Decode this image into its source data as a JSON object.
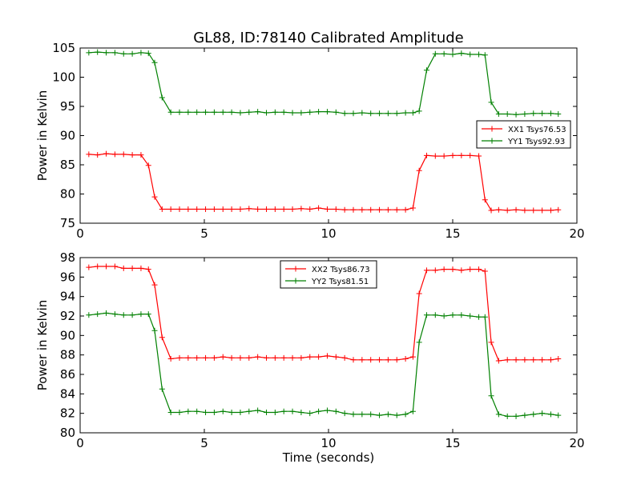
{
  "figure": {
    "title": "GL88, ID:78140 Calibrated Amplitude"
  },
  "chart_data": [
    {
      "type": "line",
      "xlabel": "",
      "ylabel": "Power in Kelvin",
      "xlim": [
        0,
        20
      ],
      "ylim": [
        75,
        105
      ],
      "xticks": [
        "0",
        "5",
        "10",
        "15",
        "20"
      ],
      "yticks": [
        "75",
        "80",
        "85",
        "90",
        "95",
        "100",
        "105"
      ],
      "legend_position": "center-right",
      "grid": false,
      "x": [
        0.35,
        0.7,
        1.05,
        1.4,
        1.75,
        2.1,
        2.45,
        2.75,
        3.0,
        3.3,
        3.65,
        4.0,
        4.35,
        4.7,
        5.05,
        5.4,
        5.75,
        6.1,
        6.45,
        6.8,
        7.15,
        7.5,
        7.85,
        8.2,
        8.55,
        8.9,
        9.25,
        9.6,
        9.95,
        10.3,
        10.65,
        11.0,
        11.35,
        11.7,
        12.05,
        12.4,
        12.75,
        13.1,
        13.4,
        13.65,
        13.95,
        14.3,
        14.65,
        15.0,
        15.35,
        15.7,
        16.05,
        16.3,
        16.55,
        16.85,
        17.2,
        17.55,
        17.9,
        18.25,
        18.6,
        18.95,
        19.25
      ],
      "series": [
        {
          "name": "XX1 Tsys76.53",
          "color": "#ff0000",
          "values": [
            86.8,
            86.7,
            86.9,
            86.8,
            86.8,
            86.7,
            86.7,
            84.9,
            79.5,
            77.4,
            77.4,
            77.4,
            77.4,
            77.4,
            77.4,
            77.4,
            77.4,
            77.4,
            77.4,
            77.5,
            77.4,
            77.4,
            77.4,
            77.4,
            77.4,
            77.5,
            77.4,
            77.6,
            77.4,
            77.4,
            77.3,
            77.3,
            77.3,
            77.3,
            77.3,
            77.3,
            77.3,
            77.3,
            77.6,
            84.0,
            86.6,
            86.5,
            86.5,
            86.6,
            86.6,
            86.6,
            86.5,
            79.0,
            77.2,
            77.3,
            77.2,
            77.3,
            77.2,
            77.2,
            77.2,
            77.2,
            77.3
          ]
        },
        {
          "name": "YY1 Tsys92.93",
          "color": "#008000",
          "values": [
            104.2,
            104.3,
            104.2,
            104.2,
            104.0,
            104.0,
            104.2,
            104.1,
            102.5,
            96.5,
            94.0,
            94.0,
            94.0,
            94.0,
            94.0,
            94.0,
            94.0,
            94.0,
            93.9,
            94.0,
            94.1,
            93.9,
            94.0,
            94.0,
            93.9,
            93.9,
            94.0,
            94.1,
            94.1,
            94.0,
            93.8,
            93.8,
            93.9,
            93.8,
            93.8,
            93.8,
            93.8,
            93.9,
            93.9,
            94.2,
            101.2,
            104.0,
            104.0,
            103.9,
            104.1,
            103.9,
            103.9,
            103.8,
            95.7,
            93.7,
            93.7,
            93.6,
            93.7,
            93.8,
            93.8,
            93.8,
            93.7
          ]
        }
      ]
    },
    {
      "type": "line",
      "xlabel": "Time (seconds)",
      "ylabel": "Power in Kelvin",
      "xlim": [
        0,
        20
      ],
      "ylim": [
        80,
        98
      ],
      "xticks": [
        "0",
        "5",
        "10",
        "15",
        "20"
      ],
      "yticks": [
        "80",
        "82",
        "84",
        "86",
        "88",
        "90",
        "92",
        "94",
        "96",
        "98"
      ],
      "legend_position": "upper-center",
      "grid": false,
      "x": [
        0.35,
        0.7,
        1.05,
        1.4,
        1.75,
        2.1,
        2.45,
        2.75,
        3.0,
        3.3,
        3.65,
        4.0,
        4.35,
        4.7,
        5.05,
        5.4,
        5.75,
        6.1,
        6.45,
        6.8,
        7.15,
        7.5,
        7.85,
        8.2,
        8.55,
        8.9,
        9.25,
        9.6,
        9.95,
        10.3,
        10.65,
        11.0,
        11.35,
        11.7,
        12.05,
        12.4,
        12.75,
        13.1,
        13.4,
        13.65,
        13.95,
        14.3,
        14.65,
        15.0,
        15.35,
        15.7,
        16.05,
        16.3,
        16.55,
        16.85,
        17.2,
        17.55,
        17.9,
        18.25,
        18.6,
        18.95,
        19.25
      ],
      "series": [
        {
          "name": "XX2 Tsys86.73",
          "color": "#ff0000",
          "values": [
            97.0,
            97.1,
            97.1,
            97.1,
            96.9,
            96.9,
            96.9,
            96.8,
            95.2,
            89.8,
            87.6,
            87.7,
            87.7,
            87.7,
            87.7,
            87.7,
            87.8,
            87.7,
            87.7,
            87.7,
            87.8,
            87.7,
            87.7,
            87.7,
            87.7,
            87.7,
            87.8,
            87.8,
            87.9,
            87.8,
            87.7,
            87.5,
            87.5,
            87.5,
            87.5,
            87.5,
            87.5,
            87.6,
            87.8,
            94.3,
            96.7,
            96.7,
            96.8,
            96.8,
            96.7,
            96.8,
            96.8,
            96.6,
            89.3,
            87.4,
            87.5,
            87.5,
            87.5,
            87.5,
            87.5,
            87.5,
            87.6
          ]
        },
        {
          "name": "YY2 Tsys81.51",
          "color": "#008000",
          "values": [
            92.1,
            92.2,
            92.3,
            92.2,
            92.1,
            92.1,
            92.2,
            92.2,
            90.5,
            84.5,
            82.1,
            82.1,
            82.2,
            82.2,
            82.1,
            82.1,
            82.2,
            82.1,
            82.1,
            82.2,
            82.3,
            82.1,
            82.1,
            82.2,
            82.2,
            82.1,
            82.0,
            82.2,
            82.3,
            82.2,
            82.0,
            81.9,
            81.9,
            81.9,
            81.8,
            81.9,
            81.8,
            81.9,
            82.2,
            89.3,
            92.1,
            92.1,
            92.0,
            92.1,
            92.1,
            92.0,
            91.9,
            91.9,
            83.8,
            81.9,
            81.7,
            81.7,
            81.8,
            81.9,
            82.0,
            81.9,
            81.8
          ]
        }
      ]
    }
  ]
}
